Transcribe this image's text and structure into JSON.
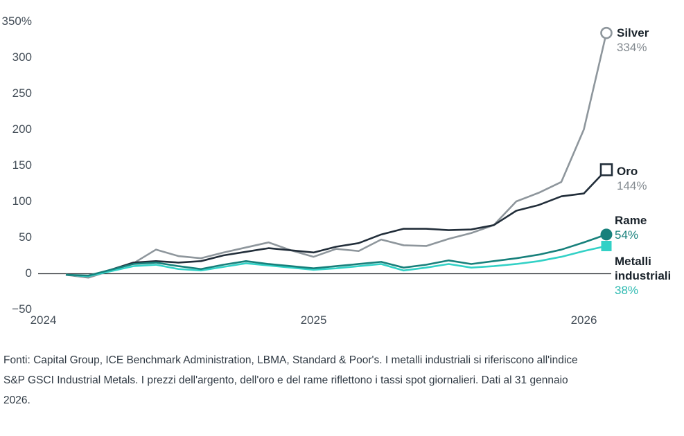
{
  "chart_data": {
    "type": "line",
    "grid": false,
    "unit": "%",
    "ylim": [
      -50,
      350
    ],
    "months": [
      "2024-01",
      "2024-02",
      "2024-03",
      "2024-04",
      "2024-05",
      "2024-06",
      "2024-07",
      "2024-08",
      "2024-09",
      "2024-10",
      "2024-11",
      "2024-12",
      "2025-01",
      "2025-02",
      "2025-03",
      "2025-04",
      "2025-05",
      "2025-06",
      "2025-07",
      "2025-08",
      "2025-09",
      "2025-10",
      "2025-11",
      "2025-12",
      "2026-01"
    ],
    "x_tick_labels": [
      "2024",
      "2025",
      "2026"
    ],
    "y_ticks": [
      {
        "label": "350%",
        "value": 350
      },
      {
        "label": "300",
        "value": 300
      },
      {
        "label": "250",
        "value": 250
      },
      {
        "label": "200",
        "value": 200
      },
      {
        "label": "150",
        "value": 150
      },
      {
        "label": "100",
        "value": 100
      },
      {
        "label": "50",
        "value": 50
      },
      {
        "label": "0",
        "value": 0
      },
      {
        "label": "−50",
        "value": -50
      }
    ],
    "series": [
      {
        "name": "Silver",
        "end_label": "334%",
        "color": "#8E969C",
        "value_color": "#82898F",
        "marker": {
          "shape": "circle",
          "fill": "#FFFFFF",
          "stroke": "#8E969C"
        },
        "values": [
          -2,
          -6,
          4,
          14,
          33,
          24,
          21,
          29,
          36,
          43,
          32,
          23,
          34,
          31,
          47,
          39,
          38,
          48,
          56,
          67,
          100,
          112,
          127,
          200,
          334
        ]
      },
      {
        "name": "Oro",
        "end_label": "144%",
        "color": "#222E3A",
        "value_color": "#82898F",
        "marker": {
          "shape": "square",
          "fill": "#FFFFFF",
          "stroke": "#222E3A"
        },
        "values": [
          -2,
          -4,
          5,
          15,
          17,
          15,
          17,
          25,
          30,
          35,
          32,
          29,
          37,
          42,
          54,
          62,
          62,
          60,
          61,
          67,
          87,
          95,
          107,
          111,
          144
        ]
      },
      {
        "name": "Rame",
        "end_label": "54%",
        "color": "#17807B",
        "value_color": "#17807B",
        "marker": {
          "shape": "circle",
          "fill": "#17807B",
          "stroke": "#17807B"
        },
        "values": [
          -2,
          -3,
          5,
          13,
          15,
          10,
          6,
          12,
          17,
          13,
          10,
          7,
          10,
          13,
          16,
          8,
          12,
          18,
          13,
          17,
          21,
          26,
          33,
          43,
          54
        ]
      },
      {
        "name": "Metalli industriali",
        "end_label": "38%",
        "color": "#32D1C6",
        "value_color": "#2BB9B0",
        "marker": {
          "shape": "square",
          "fill": "#32D1C6",
          "stroke": "#32D1C6"
        },
        "values": [
          -2,
          -4,
          3,
          10,
          12,
          6,
          4,
          9,
          14,
          11,
          8,
          5,
          7,
          10,
          13,
          4,
          8,
          13,
          8,
          10,
          13,
          17,
          23,
          31,
          38
        ]
      }
    ],
    "axis_color": "#2F3237"
  },
  "footer": {
    "lines": [
      "Fonti: Capital Group, ICE Benchmark Administration, LBMA, Standard & Poor's. I metalli industriali si riferiscono all'indice",
      "S&P GSCI Industrial Metals. I prezzi dell'argento, dell'oro e del rame riflettono i tassi spot giornalieri. Dati al 31 gennaio",
      "2026."
    ]
  }
}
